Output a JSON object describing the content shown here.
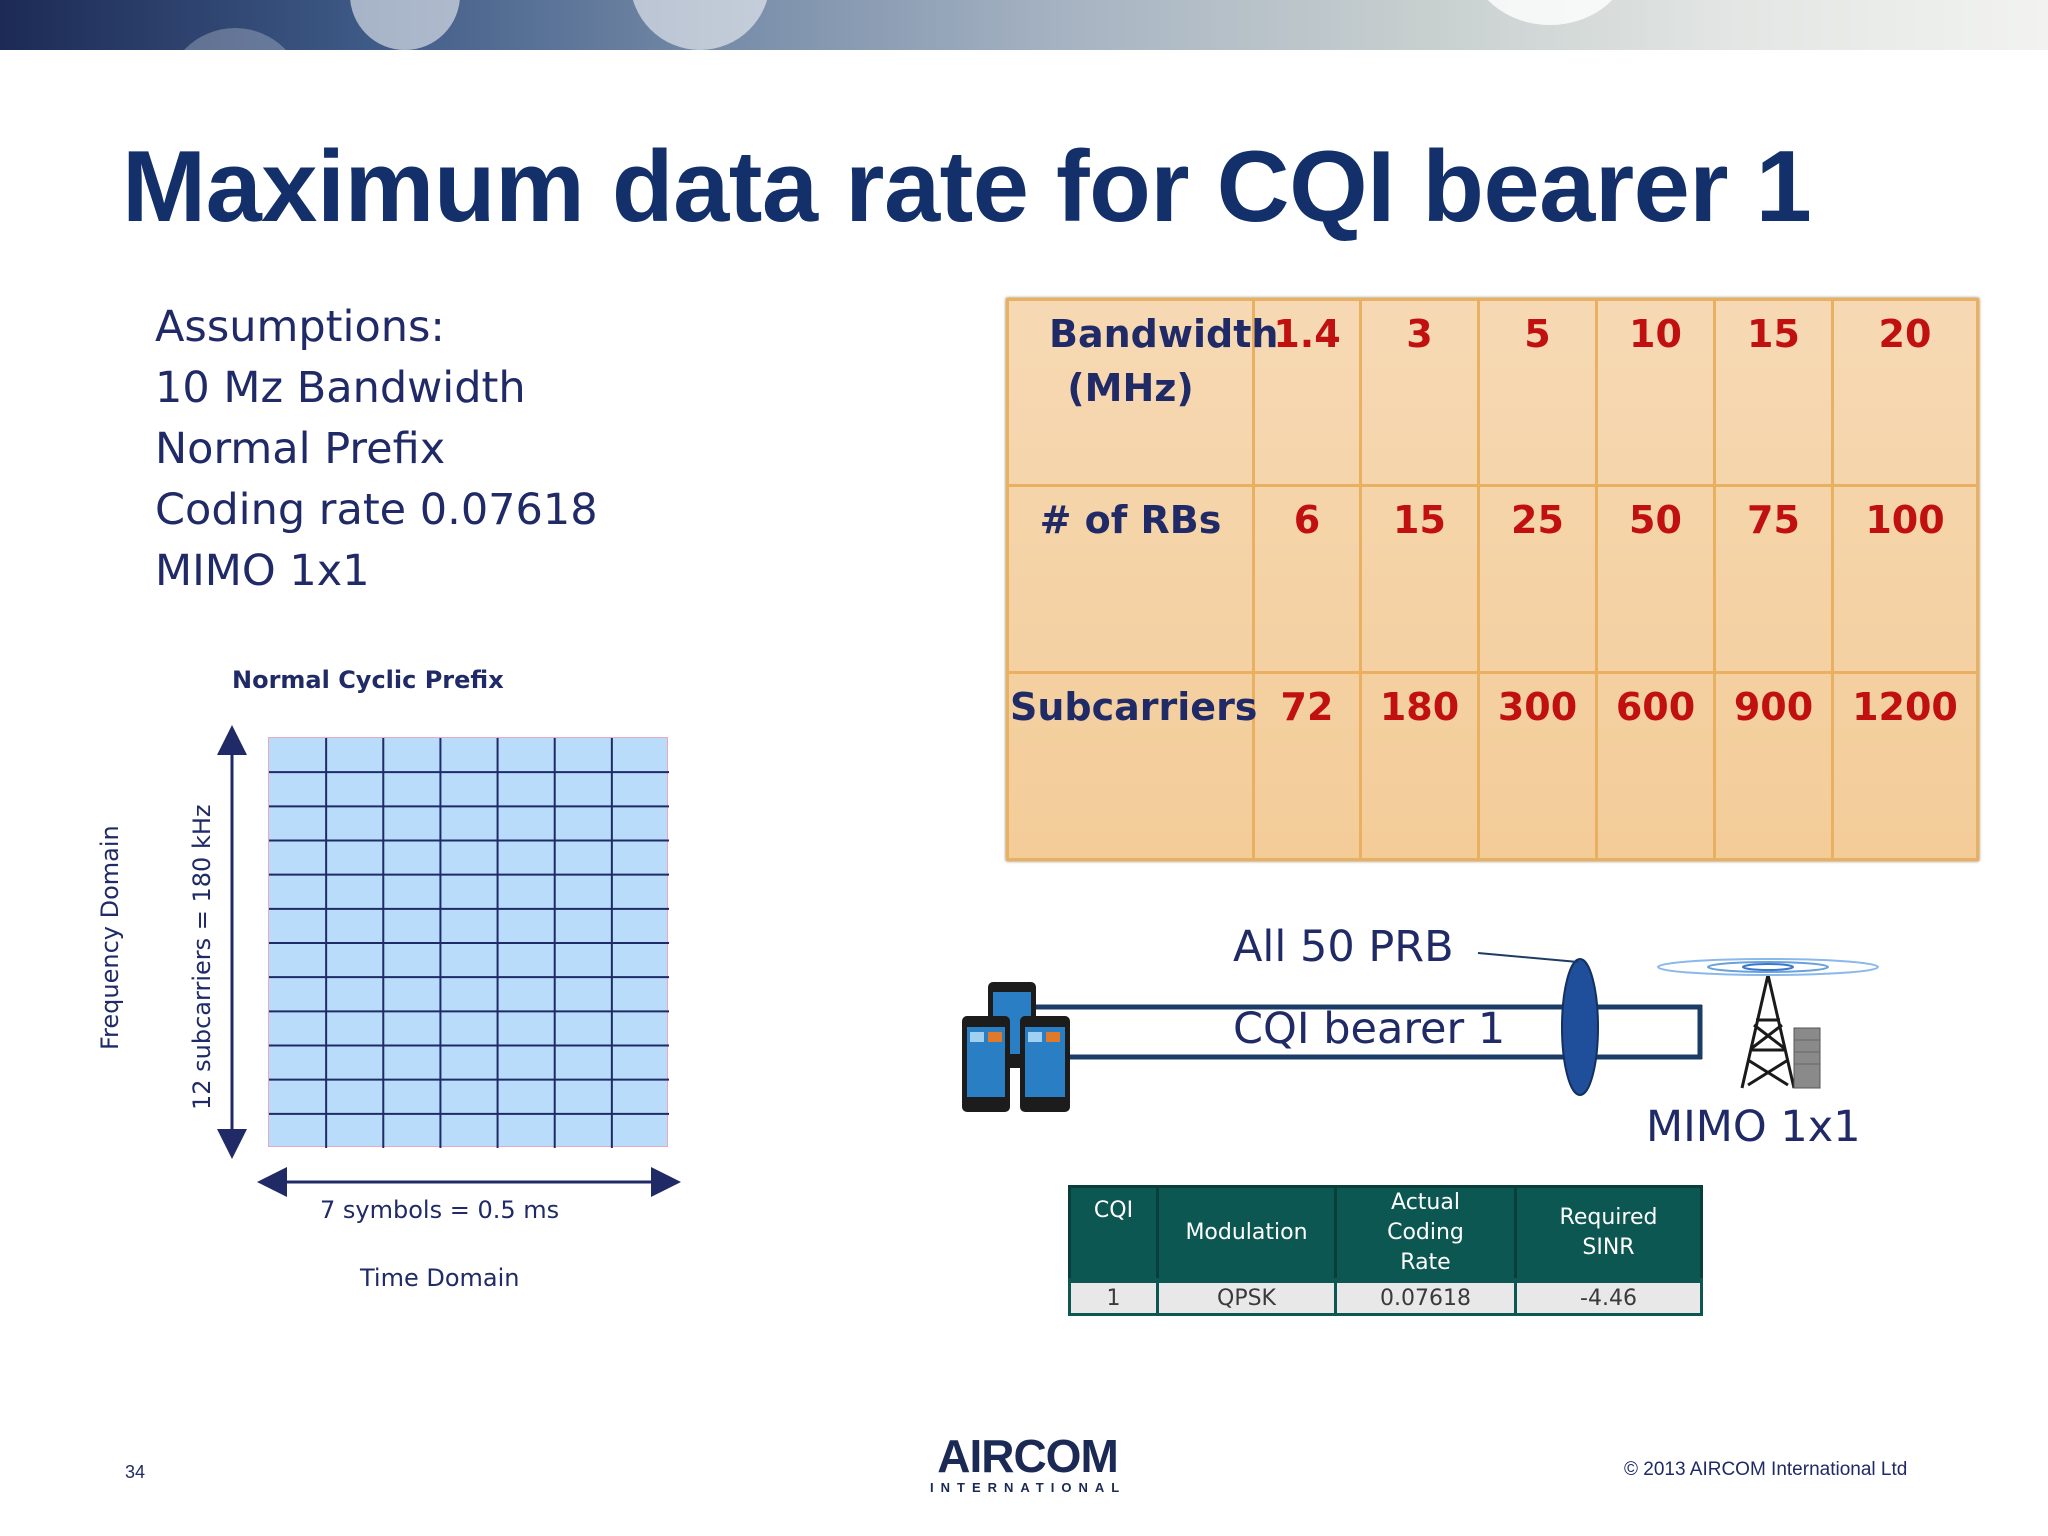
{
  "slide": {
    "title": "Maximum data rate for CQI bearer 1",
    "page_number": "34",
    "copyright": "© 2013 AIRCOM International Ltd",
    "logo": {
      "main": "AIRCOM",
      "sub": "INTERNATIONAL"
    }
  },
  "assumptions": [
    "Assumptions:",
    "10 Mz Bandwidth",
    "Normal Prefix",
    "Coding rate 0.07618",
    "MIMO 1x1"
  ],
  "resource_grid": {
    "title": "Normal Cyclic Prefix",
    "columns": 7,
    "rows": 12,
    "vertical_label": "12 subcarriers = 180 kHz",
    "frequency_label": "Frequency Domain",
    "horizontal_label": "7 symbols = 0.5 ms",
    "time_label": "Time Domain"
  },
  "bandwidth_table": {
    "rows": [
      {
        "header": "Bandwidth (MHz)",
        "values": [
          "1.4",
          "3",
          "5",
          "10",
          "15",
          "20"
        ]
      },
      {
        "header": "# of RBs",
        "values": [
          "6",
          "15",
          "25",
          "50",
          "75",
          "100"
        ]
      },
      {
        "header": "Subcarriers",
        "values": [
          "72",
          "180",
          "300",
          "600",
          "900",
          "1200"
        ]
      }
    ]
  },
  "link_diagram": {
    "prb_label": "All 50 PRB",
    "bearer_label": "CQI bearer 1",
    "mimo_label": "MIMO 1x1",
    "icons": [
      "smartphones-icon",
      "cell-tower-icon",
      "base-station-cabinet-icon"
    ]
  },
  "cqi_table": {
    "headers": [
      "CQI",
      "Modulation",
      "Actual Coding Rate",
      "Required SINR"
    ],
    "row": [
      "1",
      "QPSK",
      "0.07618",
      "-4.46"
    ]
  }
}
